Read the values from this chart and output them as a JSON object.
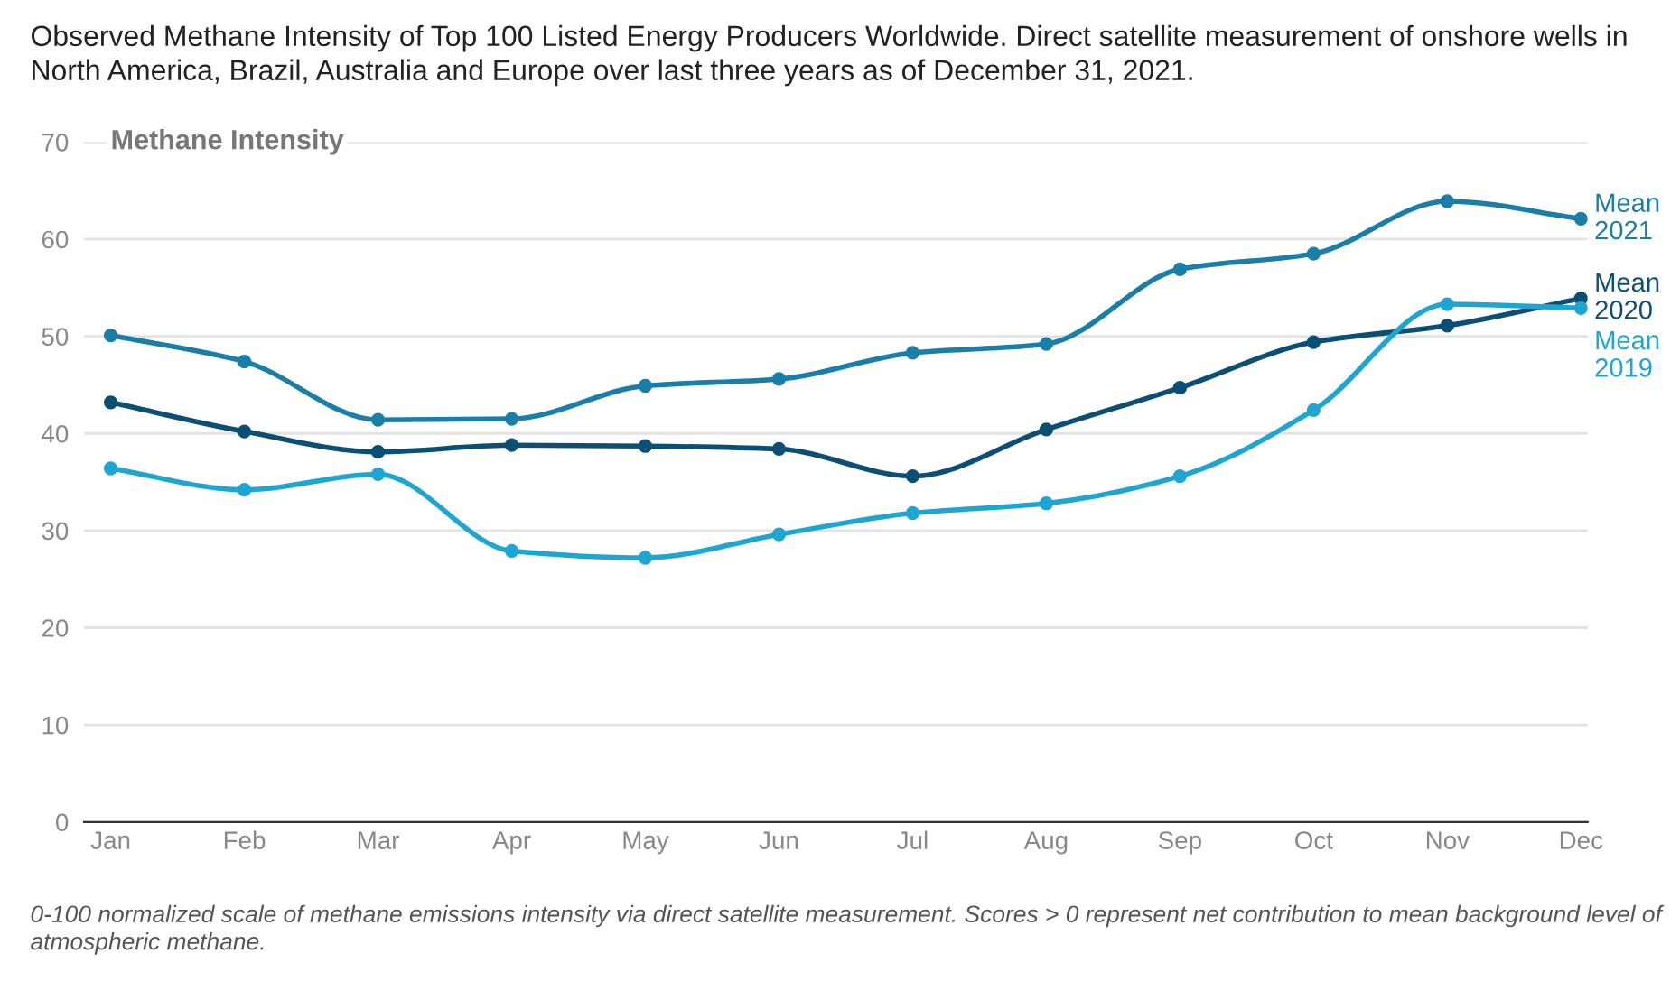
{
  "chart_data": {
    "type": "line",
    "title": "Observed Methane Intensity of Top 100 Listed Energy Producers Worldwide. Direct satellite measurement of onshore wells in North America, Brazil, Australia and Europe over last three years as of December 31, 2021.",
    "ylabel": "Methane Intensity",
    "annotations": [
      "0-100 normalized scale of methane emissions intensity via direct satellite measurement. Scores > 0 represent net contribution to mean background level of atmospheric methane."
    ],
    "categories": [
      "Jan",
      "Feb",
      "Mar",
      "Apr",
      "May",
      "Jun",
      "Jul",
      "Aug",
      "Sep",
      "Oct",
      "Nov",
      "Dec"
    ],
    "series": [
      {
        "name": "Mean\n2021",
        "color": "#1a7fa8",
        "values": [
          50.1,
          47.4,
          41.4,
          41.5,
          44.9,
          45.6,
          48.3,
          49.2,
          56.9,
          58.5,
          63.9,
          62.1
        ]
      },
      {
        "name": "Mean\n2020",
        "color": "#0b4f74",
        "values": [
          43.2,
          40.2,
          38.1,
          38.8,
          38.7,
          38.4,
          35.6,
          40.4,
          44.7,
          49.4,
          51.1,
          53.9
        ]
      },
      {
        "name": "Mean\n2019",
        "color": "#1ea6d3",
        "values": [
          36.4,
          34.2,
          35.8,
          27.9,
          27.2,
          29.6,
          31.8,
          32.8,
          35.6,
          42.4,
          53.3,
          52.9
        ]
      }
    ],
    "ylim": [
      0,
      70
    ],
    "yticks": [
      0,
      10,
      20,
      30,
      40,
      50,
      60,
      70
    ],
    "grid": "y",
    "legend": false,
    "marker": "circle",
    "line_style": "solid"
  }
}
